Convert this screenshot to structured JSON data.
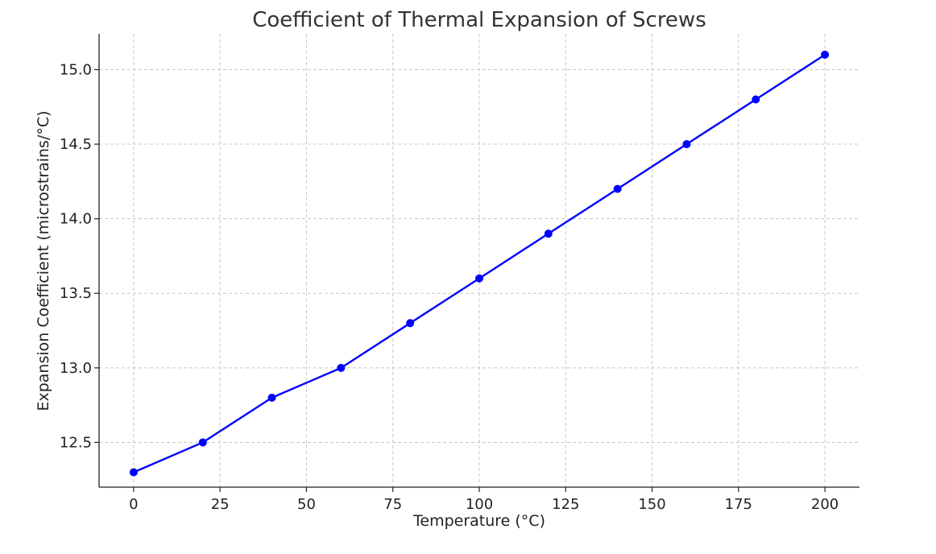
{
  "chart_data": {
    "type": "line",
    "title": "Coefficient of Thermal Expansion of Screws",
    "xlabel": "Temperature (°C)",
    "ylabel": "Expansion Coefficient (microstrains/°C)",
    "xlim": [
      -10,
      210
    ],
    "ylim": [
      12.2,
      15.24
    ],
    "xticks": [
      0,
      25,
      50,
      75,
      100,
      125,
      150,
      175,
      200
    ],
    "xtick_labels": [
      "0",
      "25",
      "50",
      "75",
      "100",
      "125",
      "150",
      "175",
      "200"
    ],
    "yticks": [
      12.5,
      13.0,
      13.5,
      14.0,
      14.5,
      15.0
    ],
    "ytick_labels": [
      "12.5",
      "13.0",
      "13.5",
      "14.0",
      "14.5",
      "15.0"
    ],
    "grid": true,
    "series": [
      {
        "color": "#0000ff",
        "marker": "circle",
        "x": [
          0,
          20,
          40,
          60,
          80,
          100,
          120,
          140,
          160,
          180,
          200
        ],
        "y": [
          12.3,
          12.5,
          12.8,
          13.0,
          13.3,
          13.6,
          13.9,
          14.2,
          14.5,
          14.8,
          15.1
        ]
      }
    ]
  }
}
